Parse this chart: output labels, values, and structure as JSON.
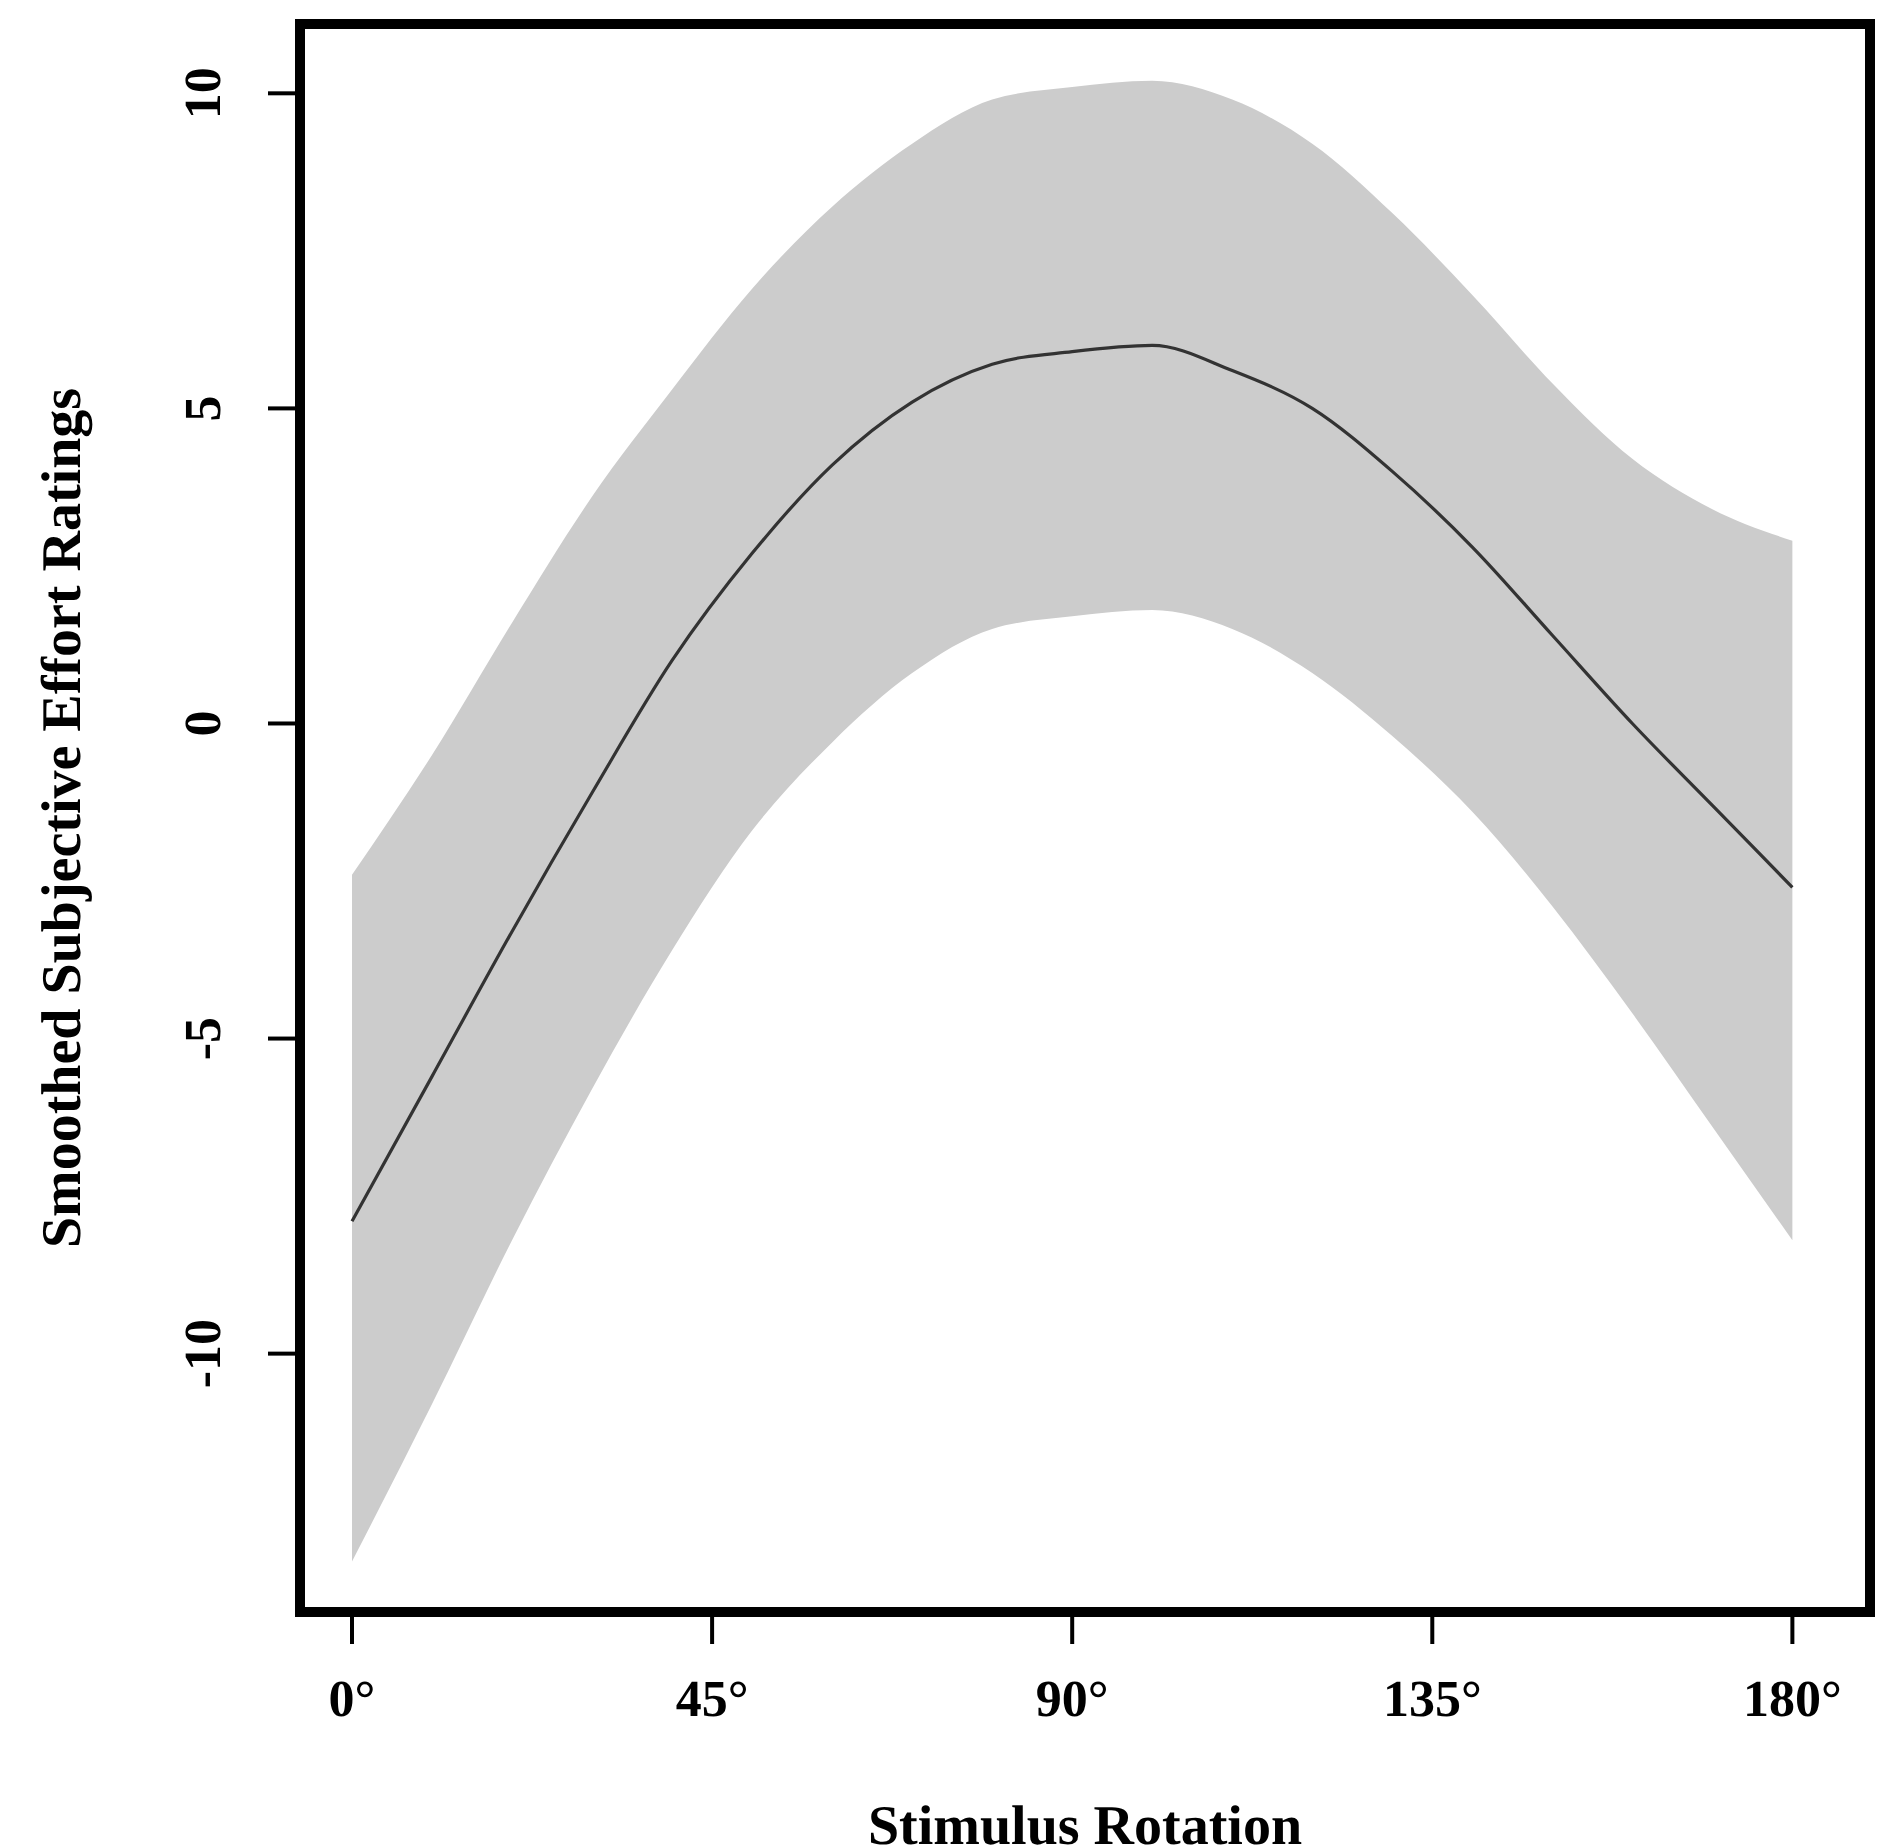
{
  "chart_data": {
    "type": "line",
    "xlabel": "Stimulus Rotation",
    "ylabel": "Smoothed Subjective Effort Ratings",
    "x": [
      0,
      10,
      20,
      30,
      40,
      50,
      60,
      70,
      80,
      90,
      100,
      110,
      120,
      130,
      140,
      150,
      160,
      170,
      180
    ],
    "series": [
      {
        "color": "#333333",
        "values": [
          -7.9,
          -5.6,
          -3.3,
          -1.1,
          1.0,
          2.7,
          4.1,
          5.1,
          5.7,
          5.9,
          6.0,
          5.6,
          5.0,
          4.0,
          2.8,
          1.4,
          0.0,
          -1.3,
          -2.6
        ],
        "lower": [
          -13.3,
          -10.8,
          -8.2,
          -5.8,
          -3.6,
          -1.7,
          -0.3,
          0.8,
          1.5,
          1.7,
          1.8,
          1.5,
          0.8,
          -0.2,
          -1.4,
          -2.9,
          -4.6,
          -6.4,
          -8.2
        ],
        "upper": [
          -2.4,
          -0.5,
          1.6,
          3.6,
          5.3,
          6.9,
          8.2,
          9.2,
          9.9,
          10.1,
          10.2,
          9.9,
          9.2,
          8.1,
          6.8,
          5.4,
          4.2,
          3.4,
          2.9
        ]
      }
    ],
    "xlim": [
      -6.5,
      189.7
    ],
    "ylim": [
      -14.1,
      11.1
    ],
    "xticks": [
      {
        "value": 0,
        "label": "0°"
      },
      {
        "value": 45,
        "label": "45°"
      },
      {
        "value": 90,
        "label": "90°"
      },
      {
        "value": 135,
        "label": "135°"
      },
      {
        "value": 180,
        "label": "180°"
      }
    ],
    "yticks": [
      -10,
      -5,
      0,
      5,
      10
    ],
    "grid": false,
    "marker": "none",
    "line_style": "solid"
  }
}
